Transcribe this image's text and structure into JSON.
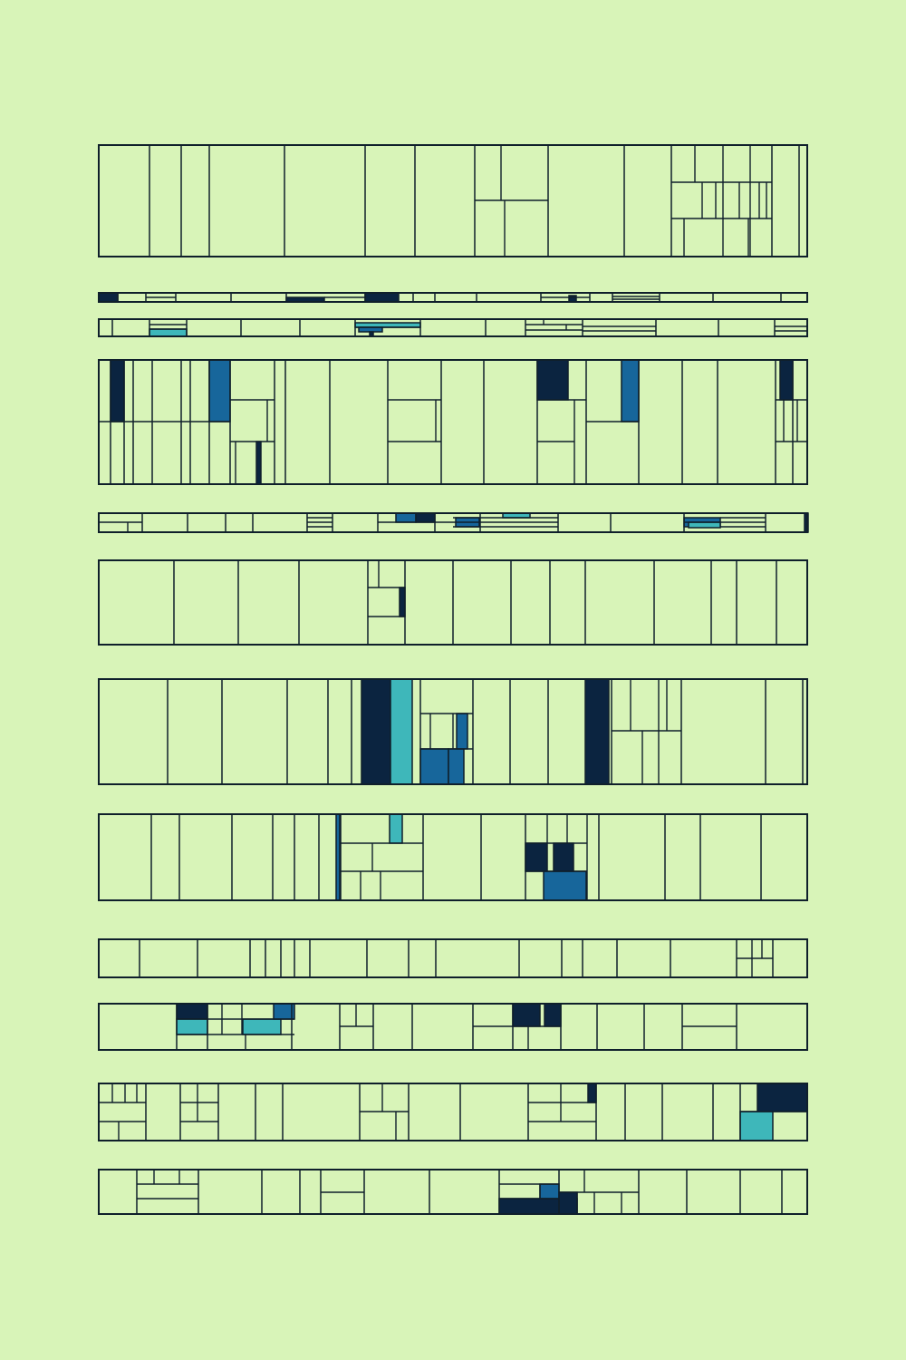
{
  "palette": {
    "background": "#d8f4b8",
    "cell": "#d8f4b8",
    "stroke": "#0f1f2b",
    "navy": "#0b2440",
    "blue": "#17669b",
    "teal": "#3eb7ba"
  },
  "artwork": {
    "style": "abstract geometric grid",
    "band_count": 12
  }
}
